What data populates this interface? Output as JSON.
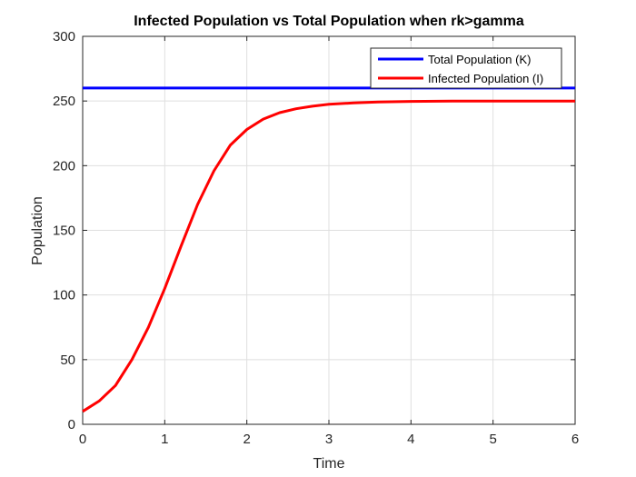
{
  "chart_data": {
    "type": "line",
    "title": "Infected Population vs Total Population when rk>gamma",
    "xlabel": "Time",
    "ylabel": "Population",
    "xlim": [
      0,
      6
    ],
    "ylim": [
      0,
      300
    ],
    "xticks": [
      0,
      1,
      2,
      3,
      4,
      5,
      6
    ],
    "yticks": [
      0,
      50,
      100,
      150,
      200,
      250,
      300
    ],
    "grid": true,
    "legend_position": "top-right",
    "series": [
      {
        "name": "Total Population (K)",
        "color": "#0000ff",
        "x": [
          0,
          6
        ],
        "y": [
          260,
          260
        ]
      },
      {
        "name": "Infected Population (I)",
        "color": "#ff0000",
        "x": [
          0,
          0.2,
          0.4,
          0.6,
          0.8,
          1.0,
          1.2,
          1.4,
          1.6,
          1.8,
          2.0,
          2.2,
          2.4,
          2.6,
          2.8,
          3.0,
          3.3,
          3.6,
          4.0,
          4.5,
          5.0,
          5.5,
          6.0
        ],
        "y": [
          10,
          18,
          30,
          50,
          75,
          105,
          138,
          170,
          196,
          216,
          228,
          236,
          241,
          244,
          246,
          247.5,
          248.5,
          249.2,
          249.7,
          249.9,
          250,
          250,
          250
        ]
      }
    ]
  }
}
